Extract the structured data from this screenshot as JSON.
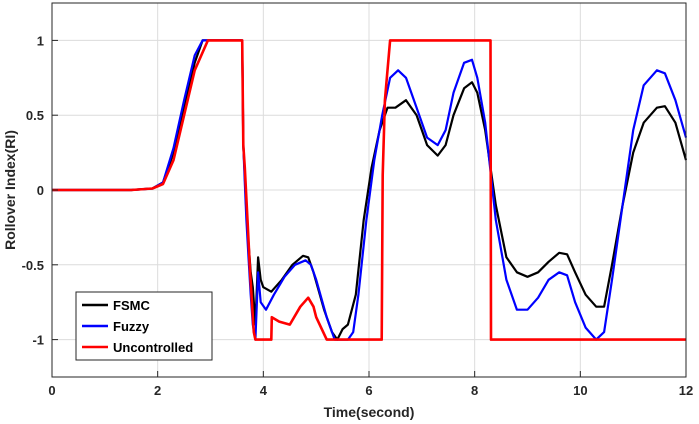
{
  "chart_data": {
    "type": "line",
    "title": "",
    "xlabel": "Time(second)",
    "ylabel": "Rollover Index(RI)",
    "xlim": [
      0,
      12
    ],
    "ylim": [
      -1.25,
      1.25
    ],
    "xticks": [
      0,
      2,
      4,
      6,
      8,
      10,
      12
    ],
    "xtick_labels": [
      "0",
      "2",
      "4",
      "6",
      "8",
      "10",
      "12"
    ],
    "yticks": [
      -1,
      -0.5,
      0,
      0.5,
      1
    ],
    "ytick_labels": [
      "-1",
      "-0.5",
      "0",
      "0.5",
      "1"
    ],
    "grid": true,
    "legend_position": "bottom-left",
    "series": [
      {
        "name": "FSMC",
        "color": "#000000",
        "x": [
          0,
          1.5,
          1.9,
          2.1,
          2.3,
          2.5,
          2.7,
          2.85,
          2.95,
          3.6,
          3.62,
          3.65,
          3.68,
          3.72,
          3.76,
          3.8,
          3.85,
          3.9,
          3.95,
          4.0,
          4.15,
          4.35,
          4.55,
          4.75,
          4.85,
          4.95,
          5.15,
          5.3,
          5.4,
          5.5,
          5.6,
          5.75,
          5.9,
          6.05,
          6.2,
          6.35,
          6.5,
          6.7,
          6.9,
          7.1,
          7.3,
          7.45,
          7.6,
          7.8,
          7.95,
          8.05,
          8.2,
          8.4,
          8.6,
          8.8,
          9.0,
          9.2,
          9.4,
          9.6,
          9.75,
          9.9,
          10.1,
          10.3,
          10.45,
          10.6,
          10.8,
          11.0,
          11.2,
          11.45,
          11.6,
          11.8,
          12.0
        ],
        "y": [
          0,
          0,
          0.01,
          0.05,
          0.25,
          0.55,
          0.85,
          1,
          1,
          1,
          0.3,
          0.1,
          -0.15,
          -0.35,
          -0.55,
          -0.65,
          -0.9,
          -0.45,
          -0.6,
          -0.65,
          -0.68,
          -0.6,
          -0.5,
          -0.44,
          -0.45,
          -0.55,
          -0.8,
          -0.95,
          -1,
          -0.93,
          -0.9,
          -0.7,
          -0.2,
          0.15,
          0.4,
          0.55,
          0.55,
          0.6,
          0.5,
          0.3,
          0.23,
          0.3,
          0.5,
          0.68,
          0.72,
          0.65,
          0.4,
          -0.1,
          -0.45,
          -0.55,
          -0.58,
          -0.55,
          -0.48,
          -0.42,
          -0.43,
          -0.55,
          -0.7,
          -0.78,
          -0.78,
          -0.5,
          -0.1,
          0.25,
          0.45,
          0.55,
          0.56,
          0.45,
          0.2
        ]
      },
      {
        "name": "Fuzzy",
        "color": "#0000ff",
        "x": [
          0,
          1.5,
          1.9,
          2.1,
          2.3,
          2.5,
          2.7,
          2.85,
          2.95,
          3.6,
          3.62,
          3.65,
          3.68,
          3.72,
          3.76,
          3.8,
          3.85,
          3.9,
          3.95,
          4.05,
          4.2,
          4.4,
          4.6,
          4.8,
          4.9,
          5.0,
          5.2,
          5.35,
          5.45,
          5.6,
          5.7,
          5.8,
          5.95,
          6.1,
          6.25,
          6.4,
          6.55,
          6.7,
          6.9,
          7.1,
          7.3,
          7.45,
          7.6,
          7.8,
          7.95,
          8.05,
          8.2,
          8.4,
          8.6,
          8.8,
          9.0,
          9.2,
          9.4,
          9.6,
          9.75,
          9.9,
          10.1,
          10.3,
          10.45,
          10.6,
          10.8,
          11.0,
          11.2,
          11.45,
          11.6,
          11.8,
          12.0
        ],
        "y": [
          0,
          0,
          0.01,
          0.05,
          0.28,
          0.6,
          0.9,
          1,
          1,
          1,
          0.3,
          0.05,
          -0.2,
          -0.45,
          -0.7,
          -0.9,
          -1,
          -0.55,
          -0.75,
          -0.8,
          -0.7,
          -0.58,
          -0.5,
          -0.47,
          -0.5,
          -0.6,
          -0.85,
          -1,
          -1,
          -1,
          -0.95,
          -0.7,
          -0.2,
          0.2,
          0.5,
          0.75,
          0.8,
          0.75,
          0.55,
          0.35,
          0.3,
          0.4,
          0.65,
          0.85,
          0.87,
          0.75,
          0.45,
          -0.2,
          -0.6,
          -0.8,
          -0.8,
          -0.72,
          -0.6,
          -0.55,
          -0.57,
          -0.75,
          -0.92,
          -1,
          -0.95,
          -0.6,
          -0.1,
          0.4,
          0.7,
          0.8,
          0.78,
          0.6,
          0.35
        ]
      },
      {
        "name": "Uncontrolled",
        "color": "#ff0000",
        "x": [
          0,
          1.5,
          1.9,
          2.1,
          2.3,
          2.5,
          2.7,
          2.95,
          3.6,
          3.62,
          3.65,
          3.7,
          3.75,
          3.82,
          3.85,
          3.9,
          4.15,
          4.16,
          4.3,
          4.5,
          4.7,
          4.85,
          4.95,
          5.0,
          5.2,
          5.4,
          6.24,
          6.26,
          6.3,
          6.35,
          6.4,
          8.3,
          8.31,
          12.0
        ],
        "y": [
          0,
          0,
          0.01,
          0.04,
          0.2,
          0.5,
          0.8,
          1,
          1,
          0.3,
          0.15,
          -0.2,
          -0.55,
          -0.95,
          -1,
          -1,
          -1,
          -0.85,
          -0.88,
          -0.9,
          -0.78,
          -0.72,
          -0.78,
          -0.85,
          -1,
          -1,
          -1,
          0.1,
          0.6,
          0.8,
          1,
          1,
          -1,
          -1
        ]
      }
    ],
    "legend": [
      "FSMC",
      "Fuzzy",
      "Uncontrolled"
    ]
  }
}
